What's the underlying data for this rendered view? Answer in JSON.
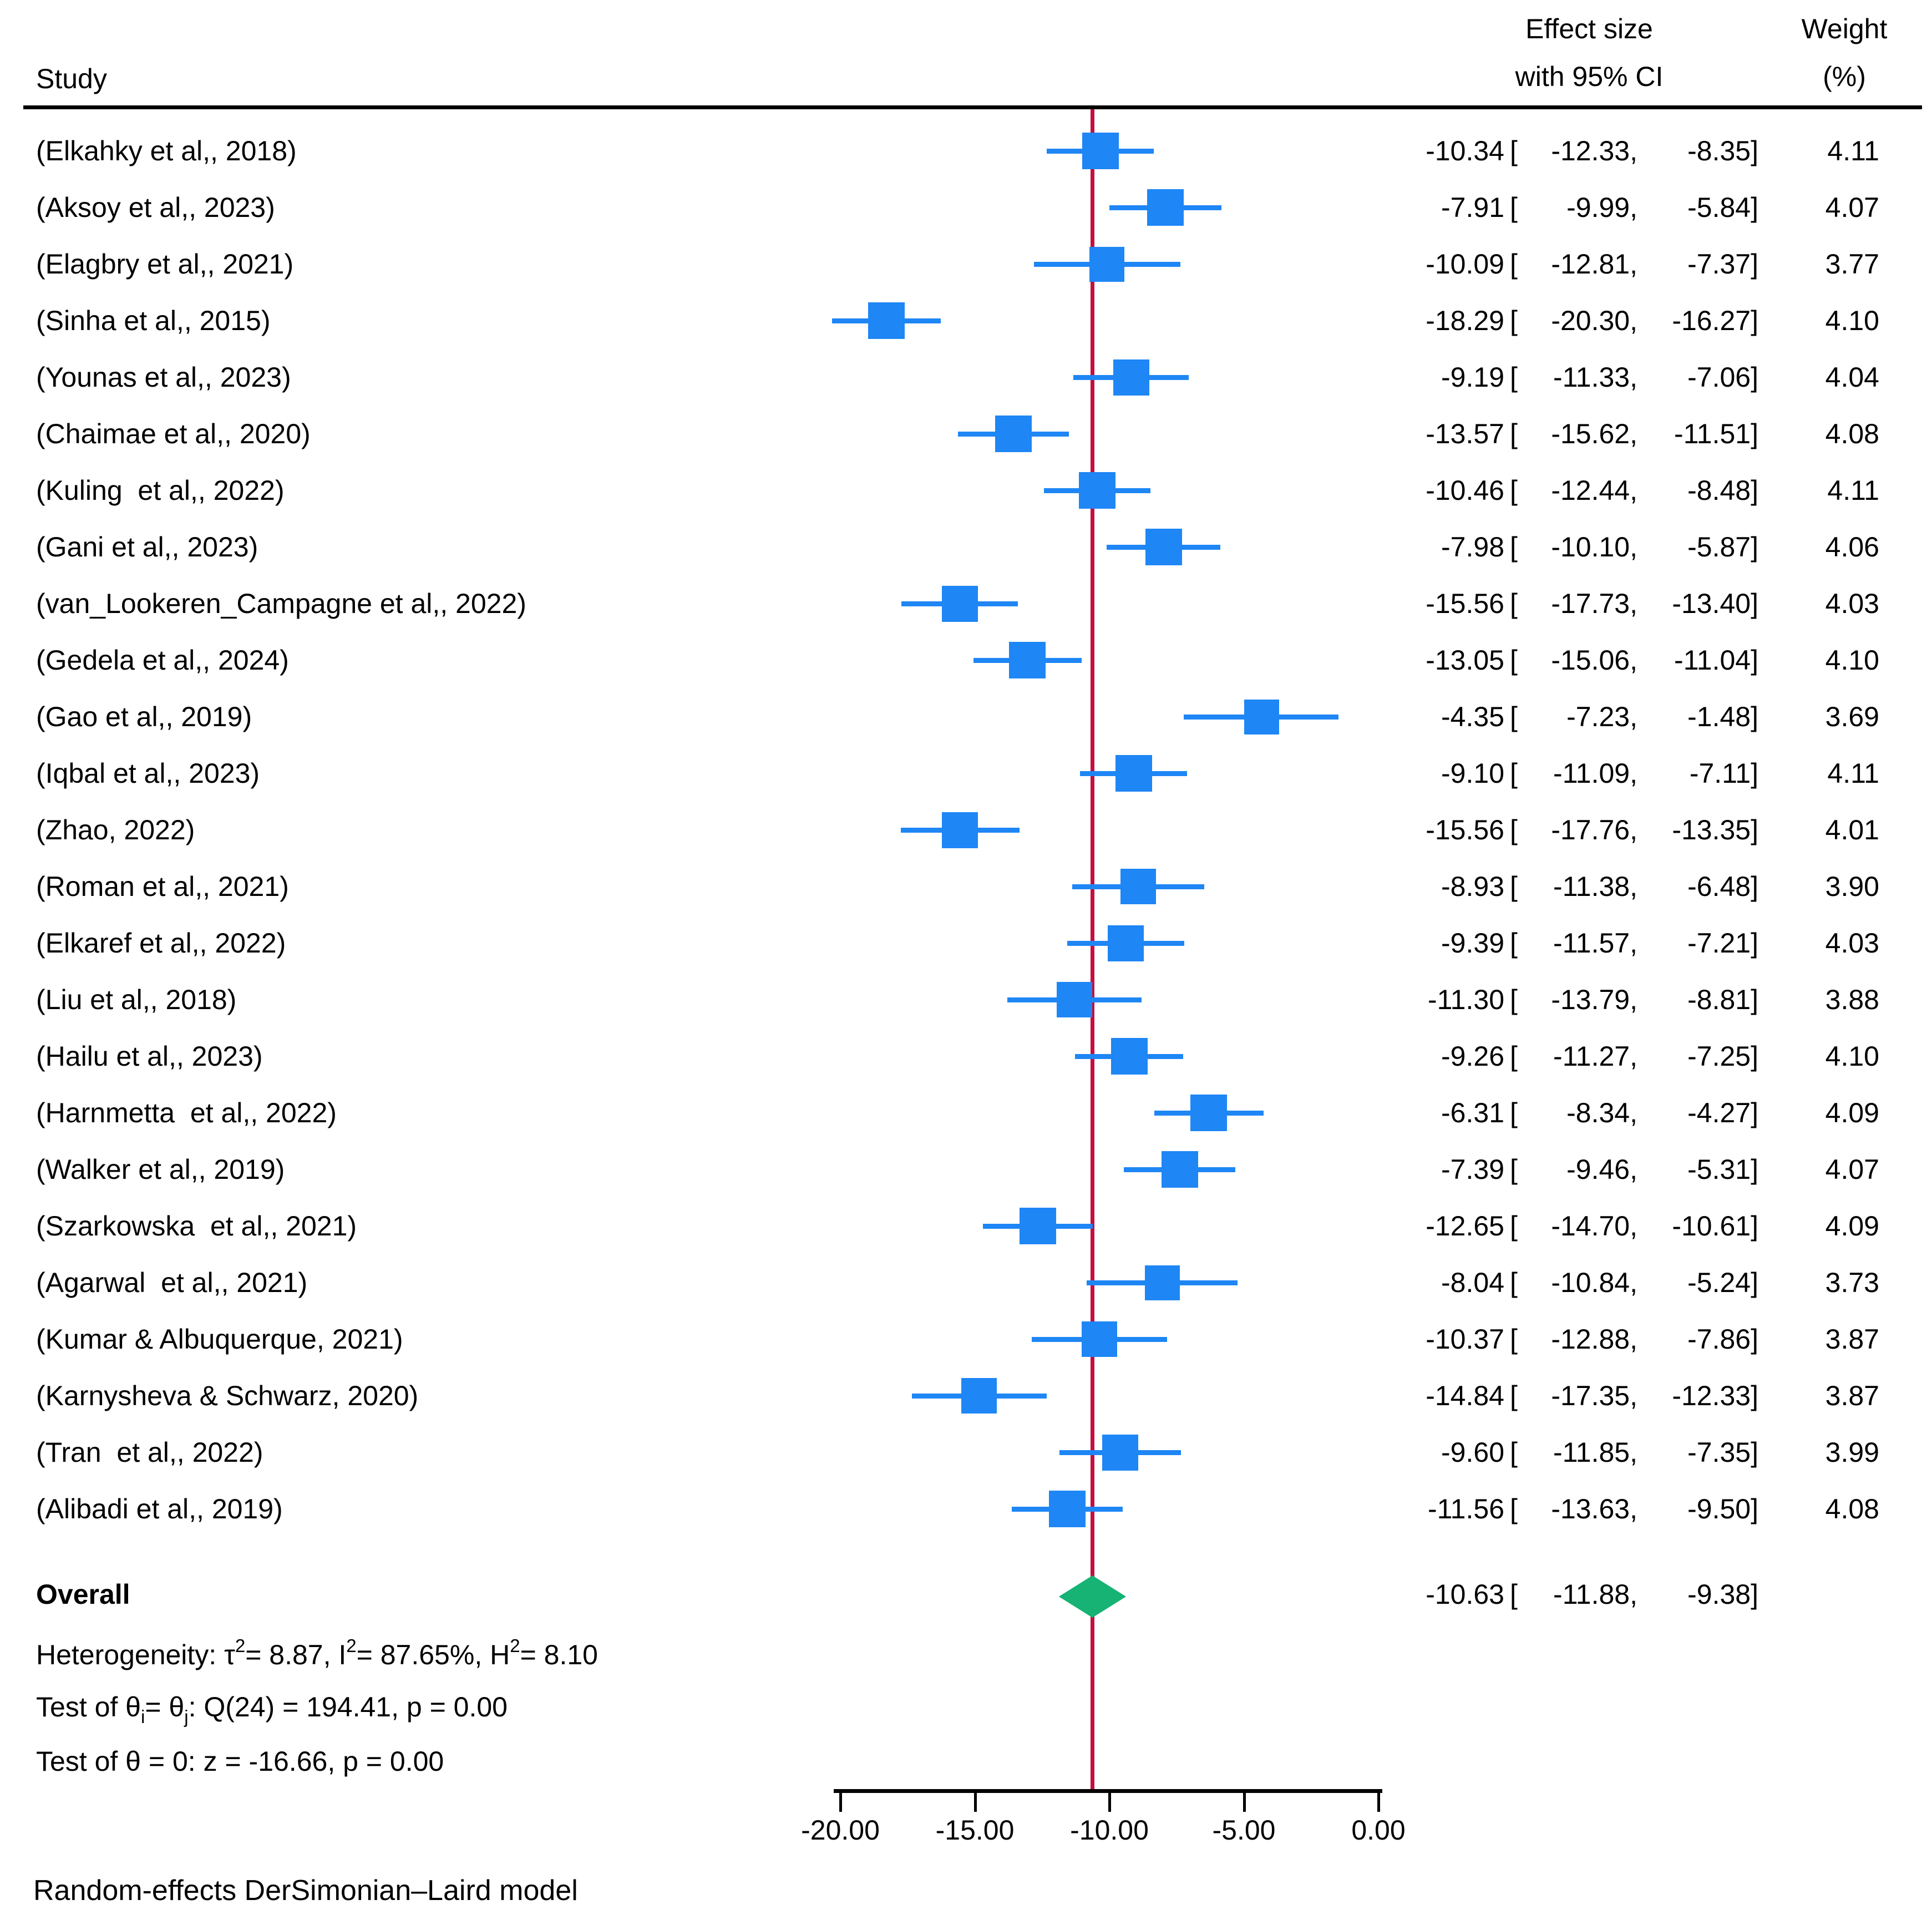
{
  "header": {
    "study_col": "Study",
    "effect_col_line1": "Effect size",
    "effect_col_line2": "with 95% CI",
    "weight_col_line1": "Weight",
    "weight_col_line2": "(%)"
  },
  "colors": {
    "marker_blue": "#1e86f5",
    "null_line_red": "#c40f3f",
    "diamond_green": "#16b374",
    "axis_black": "#000000"
  },
  "punctuation": {
    "ci_open": "[",
    "ci_comma": ",",
    "ci_close": "]"
  },
  "overall": {
    "label": "Overall",
    "est": "-10.63",
    "lo": "-11.88",
    "hi": "-9.38"
  },
  "stats": {
    "heterogeneity_parts": [
      {
        "t": "Heterogeneity: τ"
      },
      {
        "t": "2",
        "sup": true
      },
      {
        "t": "= 8.87, I"
      },
      {
        "t": "2",
        "sup": true
      },
      {
        "t": "= 87.65%, H"
      },
      {
        "t": "2",
        "sup": true
      },
      {
        "t": "= 8.10"
      }
    ],
    "test_q_parts": [
      {
        "t": "Test of θ"
      },
      {
        "t": "i",
        "sub": true
      },
      {
        "t": "= θ"
      },
      {
        "t": "j",
        "sub": true
      },
      {
        "t": ": Q(24) = 194.41, p = 0.00"
      }
    ],
    "test_z": "Test of θ = 0: z = -16.66, p = 0.00"
  },
  "footer": "Random-effects DerSimonian–Laird model",
  "chart_data": {
    "type": "forest",
    "title": "",
    "xlabel": "",
    "xlim": [
      -20,
      0
    ],
    "x_tick_values": [
      -20,
      -15,
      -10,
      -5,
      0
    ],
    "x_tick_labels": [
      "-20.00",
      "-15.00",
      "-10.00",
      "-5.00",
      "0.00"
    ],
    "null_line_at_overall": true,
    "overall": {
      "est": -10.63,
      "lo": -11.88,
      "hi": -9.38
    },
    "studies": [
      {
        "label": "(Elkahky et al,, 2018)",
        "est": -10.34,
        "lo": -12.33,
        "hi": -8.35,
        "weight": 4.11,
        "est_text": "-10.34",
        "lo_text": "-12.33",
        "hi_text": "-8.35",
        "weight_text": "4.11"
      },
      {
        "label": "(Aksoy et al,, 2023)",
        "est": -7.91,
        "lo": -9.99,
        "hi": -5.84,
        "weight": 4.07,
        "est_text": "-7.91",
        "lo_text": "-9.99",
        "hi_text": "-5.84",
        "weight_text": "4.07"
      },
      {
        "label": "(Elagbry et al,, 2021)",
        "est": -10.09,
        "lo": -12.81,
        "hi": -7.37,
        "weight": 3.77,
        "est_text": "-10.09",
        "lo_text": "-12.81",
        "hi_text": "-7.37",
        "weight_text": "3.77"
      },
      {
        "label": "(Sinha et al,, 2015)",
        "est": -18.29,
        "lo": -20.3,
        "hi": -16.27,
        "weight": 4.1,
        "est_text": "-18.29",
        "lo_text": "-20.30",
        "hi_text": "-16.27",
        "weight_text": "4.10"
      },
      {
        "label": "(Younas et al,, 2023)",
        "est": -9.19,
        "lo": -11.33,
        "hi": -7.06,
        "weight": 4.04,
        "est_text": "-9.19",
        "lo_text": "-11.33",
        "hi_text": "-7.06",
        "weight_text": "4.04"
      },
      {
        "label": "(Chaimae et al,, 2020)",
        "est": -13.57,
        "lo": -15.62,
        "hi": -11.51,
        "weight": 4.08,
        "est_text": "-13.57",
        "lo_text": "-15.62",
        "hi_text": "-11.51",
        "weight_text": "4.08"
      },
      {
        "label": "(Kuling  et al,, 2022)",
        "est": -10.46,
        "lo": -12.44,
        "hi": -8.48,
        "weight": 4.11,
        "est_text": "-10.46",
        "lo_text": "-12.44",
        "hi_text": "-8.48",
        "weight_text": "4.11"
      },
      {
        "label": "(Gani et al,, 2023)",
        "est": -7.98,
        "lo": -10.1,
        "hi": -5.87,
        "weight": 4.06,
        "est_text": "-7.98",
        "lo_text": "-10.10",
        "hi_text": "-5.87",
        "weight_text": "4.06"
      },
      {
        "label": "(van_Lookeren_Campagne et al,, 2022)",
        "est": -15.56,
        "lo": -17.73,
        "hi": -13.4,
        "weight": 4.03,
        "est_text": "-15.56",
        "lo_text": "-17.73",
        "hi_text": "-13.40",
        "weight_text": "4.03"
      },
      {
        "label": "(Gedela et al,, 2024)",
        "est": -13.05,
        "lo": -15.06,
        "hi": -11.04,
        "weight": 4.1,
        "est_text": "-13.05",
        "lo_text": "-15.06",
        "hi_text": "-11.04",
        "weight_text": "4.10"
      },
      {
        "label": "(Gao et al,, 2019)",
        "est": -4.35,
        "lo": -7.23,
        "hi": -1.48,
        "weight": 3.69,
        "est_text": "-4.35",
        "lo_text": "-7.23",
        "hi_text": "-1.48",
        "weight_text": "3.69"
      },
      {
        "label": "(Iqbal et al,, 2023)",
        "est": -9.1,
        "lo": -11.09,
        "hi": -7.11,
        "weight": 4.11,
        "est_text": "-9.10",
        "lo_text": "-11.09",
        "hi_text": "-7.11",
        "weight_text": "4.11"
      },
      {
        "label": "(Zhao, 2022)",
        "est": -15.56,
        "lo": -17.76,
        "hi": -13.35,
        "weight": 4.01,
        "est_text": "-15.56",
        "lo_text": "-17.76",
        "hi_text": "-13.35",
        "weight_text": "4.01"
      },
      {
        "label": "(Roman et al,, 2021)",
        "est": -8.93,
        "lo": -11.38,
        "hi": -6.48,
        "weight": 3.9,
        "est_text": "-8.93",
        "lo_text": "-11.38",
        "hi_text": "-6.48",
        "weight_text": "3.90"
      },
      {
        "label": "(Elkaref et al,, 2022)",
        "est": -9.39,
        "lo": -11.57,
        "hi": -7.21,
        "weight": 4.03,
        "est_text": "-9.39",
        "lo_text": "-11.57",
        "hi_text": "-7.21",
        "weight_text": "4.03"
      },
      {
        "label": "(Liu et al,, 2018)",
        "est": -11.3,
        "lo": -13.79,
        "hi": -8.81,
        "weight": 3.88,
        "est_text": "-11.30",
        "lo_text": "-13.79",
        "hi_text": "-8.81",
        "weight_text": "3.88"
      },
      {
        "label": "(Hailu et al,, 2023)",
        "est": -9.26,
        "lo": -11.27,
        "hi": -7.25,
        "weight": 4.1,
        "est_text": "-9.26",
        "lo_text": "-11.27",
        "hi_text": "-7.25",
        "weight_text": "4.10"
      },
      {
        "label": "(Harnmetta  et al,, 2022)",
        "est": -6.31,
        "lo": -8.34,
        "hi": -4.27,
        "weight": 4.09,
        "est_text": "-6.31",
        "lo_text": "-8.34",
        "hi_text": "-4.27",
        "weight_text": "4.09"
      },
      {
        "label": "(Walker et al,, 2019)",
        "est": -7.39,
        "lo": -9.46,
        "hi": -5.31,
        "weight": 4.07,
        "est_text": "-7.39",
        "lo_text": "-9.46",
        "hi_text": "-5.31",
        "weight_text": "4.07"
      },
      {
        "label": "(Szarkowska  et al,, 2021)",
        "est": -12.65,
        "lo": -14.7,
        "hi": -10.61,
        "weight": 4.09,
        "est_text": "-12.65",
        "lo_text": "-14.70",
        "hi_text": "-10.61",
        "weight_text": "4.09"
      },
      {
        "label": "(Agarwal  et al,, 2021)",
        "est": -8.04,
        "lo": -10.84,
        "hi": -5.24,
        "weight": 3.73,
        "est_text": "-8.04",
        "lo_text": "-10.84",
        "hi_text": "-5.24",
        "weight_text": "3.73"
      },
      {
        "label": "(Kumar & Albuquerque, 2021)",
        "est": -10.37,
        "lo": -12.88,
        "hi": -7.86,
        "weight": 3.87,
        "est_text": "-10.37",
        "lo_text": "-12.88",
        "hi_text": "-7.86",
        "weight_text": "3.87"
      },
      {
        "label": "(Karnysheva & Schwarz, 2020)",
        "est": -14.84,
        "lo": -17.35,
        "hi": -12.33,
        "weight": 3.87,
        "est_text": "-14.84",
        "lo_text": "-17.35",
        "hi_text": "-12.33",
        "weight_text": "3.87"
      },
      {
        "label": "(Tran  et al,, 2022)",
        "est": -9.6,
        "lo": -11.85,
        "hi": -7.35,
        "weight": 3.99,
        "est_text": "-9.60",
        "lo_text": "-11.85",
        "hi_text": "-7.35",
        "weight_text": "3.99"
      },
      {
        "label": "(Alibadi et al,, 2019)",
        "est": -11.56,
        "lo": -13.63,
        "hi": -9.5,
        "weight": 4.08,
        "est_text": "-11.56",
        "lo_text": "-13.63",
        "hi_text": "-9.50",
        "weight_text": "4.08"
      }
    ]
  }
}
